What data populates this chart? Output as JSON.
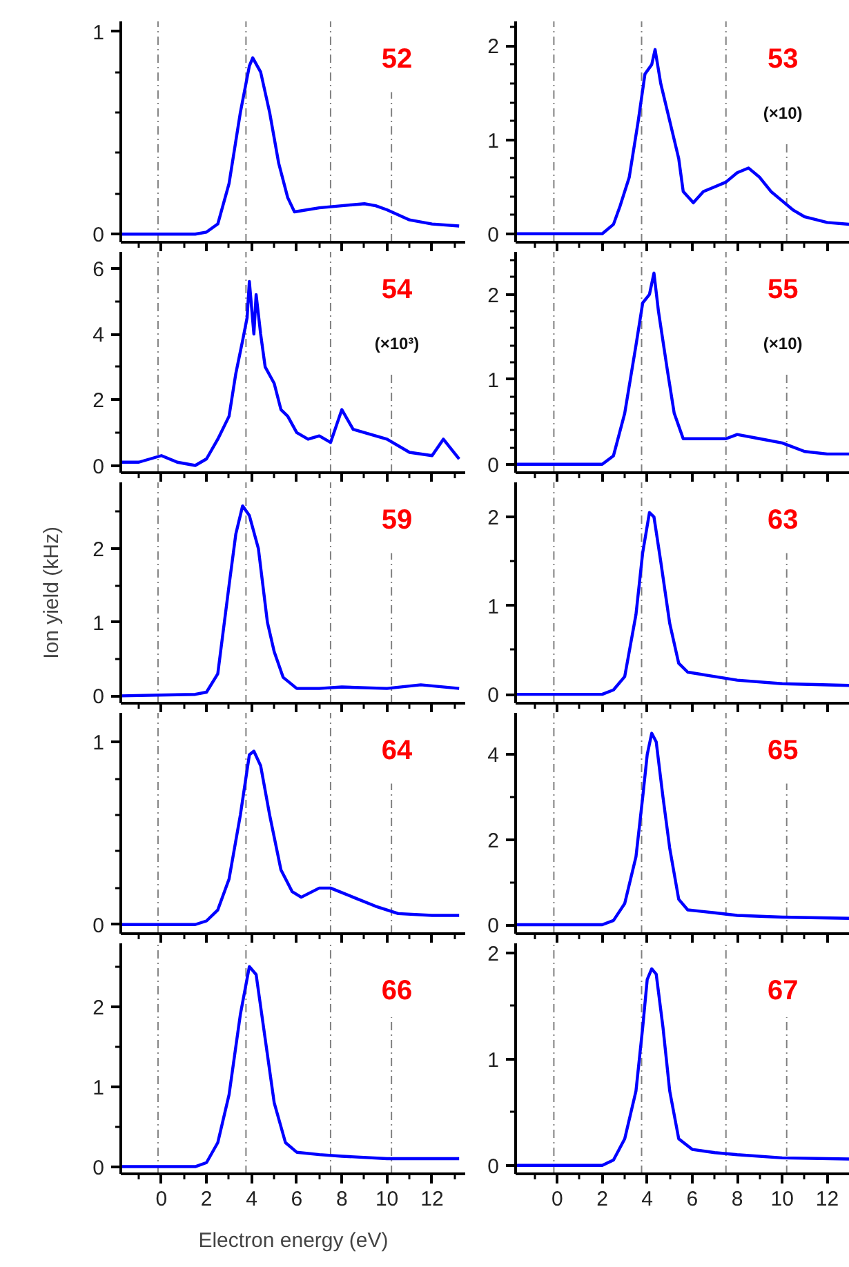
{
  "chart_data": [
    {
      "type": "line",
      "annotations": [
        "52"
      ],
      "tick_labels": "y",
      "xlim": [
        -1.8,
        13.5
      ],
      "ylim": [
        -0.04,
        1.05
      ],
      "xticks": [
        {
          "value": -1,
          "label": null
        },
        0,
        {
          "value": 1,
          "label": null
        },
        2,
        {
          "value": 3,
          "label": null
        },
        4,
        {
          "value": 5,
          "label": null
        },
        6,
        {
          "value": 7,
          "label": null
        },
        8,
        {
          "value": 9,
          "label": null
        },
        10,
        {
          "value": 11,
          "label": null
        },
        12,
        {
          "value": 13,
          "label": null
        }
      ],
      "yticks": [
        0,
        {
          "value": 0.2,
          "label": null
        },
        {
          "value": 0.4,
          "label": null
        },
        {
          "value": 0.6,
          "label": null
        },
        {
          "value": 0.8,
          "label": null
        },
        1
      ],
      "ref_lines": [
        {
          "axis": "x",
          "value": -0.15,
          "color": "#808080",
          "line_style": "dashed"
        },
        {
          "axis": "x",
          "value": 3.75,
          "color": "#808080",
          "line_style": "dashed"
        },
        {
          "axis": "x",
          "value": 7.5,
          "color": "#808080",
          "line_style": "dashed"
        },
        {
          "axis": "x",
          "value": 10.2,
          "color": "#808080",
          "line_style": "dashed"
        }
      ],
      "x": [
        -1.8,
        1.5,
        2.0,
        2.5,
        3.0,
        3.5,
        3.9,
        4.05,
        4.4,
        4.8,
        5.2,
        5.6,
        5.9,
        7,
        8,
        9,
        9.5,
        10,
        11,
        12,
        13.2
      ],
      "series": [
        {
          "color": "#0000ff",
          "values": [
            0,
            0,
            0.01,
            0.05,
            0.25,
            0.6,
            0.83,
            0.87,
            0.8,
            0.6,
            0.35,
            0.18,
            0.11,
            0.13,
            0.14,
            0.15,
            0.14,
            0.12,
            0.07,
            0.05,
            0.04
          ]
        }
      ]
    },
    {
      "type": "line",
      "annotations": [
        "53",
        "(×10)"
      ],
      "tick_labels": "y",
      "xlim": [
        -1.85,
        13.0
      ],
      "ylim": [
        -0.09,
        2.26
      ],
      "xticks": [
        {
          "value": -1,
          "label": null
        },
        0,
        {
          "value": 1,
          "label": null
        },
        2,
        {
          "value": 3,
          "label": null
        },
        4,
        {
          "value": 5,
          "label": null
        },
        6,
        {
          "value": 7,
          "label": null
        },
        8,
        {
          "value": 9,
          "label": null
        },
        10,
        {
          "value": 11,
          "label": null
        },
        12
      ],
      "yticks": [
        0,
        {
          "value": 0.2,
          "label": null
        },
        {
          "value": 0.4,
          "label": null
        },
        {
          "value": 0.6,
          "label": null
        },
        {
          "value": 0.8,
          "label": null
        },
        1,
        {
          "value": 1.2,
          "label": null
        },
        {
          "value": 1.4,
          "label": null
        },
        {
          "value": 1.6,
          "label": null
        },
        {
          "value": 1.8,
          "label": null
        },
        2,
        {
          "value": 2.2,
          "label": null
        }
      ],
      "ref_lines": [
        {
          "axis": "x",
          "value": -0.15,
          "color": "#808080",
          "line_style": "dashed"
        },
        {
          "axis": "x",
          "value": 3.75,
          "color": "#808080",
          "line_style": "dashed"
        },
        {
          "axis": "x",
          "value": 7.5,
          "color": "#808080",
          "line_style": "dashed"
        },
        {
          "axis": "x",
          "value": 10.2,
          "color": "#808080",
          "line_style": "dashed"
        }
      ],
      "x": [
        -1.85,
        2.0,
        2.5,
        2.8,
        3.2,
        3.6,
        3.9,
        4.2,
        4.35,
        4.6,
        5.0,
        5.4,
        5.6,
        6.05,
        6.5,
        7.0,
        7.5,
        8,
        8.5,
        9,
        9.5,
        10,
        10.5,
        11,
        12,
        13
      ],
      "series": [
        {
          "color": "#0000ff",
          "values": [
            0,
            0,
            0.1,
            0.3,
            0.6,
            1.2,
            1.7,
            1.8,
            1.96,
            1.6,
            1.2,
            0.8,
            0.45,
            0.33,
            0.45,
            0.5,
            0.55,
            0.65,
            0.7,
            0.6,
            0.45,
            0.35,
            0.25,
            0.18,
            0.12,
            0.1
          ]
        }
      ]
    },
    {
      "type": "line",
      "annotations": [
        "54",
        "(×10³)"
      ],
      "tick_labels": "y",
      "xlim": [
        -1.8,
        13.5
      ],
      "ylim": [
        -0.22,
        6.5
      ],
      "xticks": [
        {
          "value": -1,
          "label": null
        },
        0,
        {
          "value": 1,
          "label": null
        },
        2,
        {
          "value": 3,
          "label": null
        },
        4,
        {
          "value": 5,
          "label": null
        },
        6,
        {
          "value": 7,
          "label": null
        },
        8,
        {
          "value": 9,
          "label": null
        },
        10,
        {
          "value": 11,
          "label": null
        },
        12,
        {
          "value": 13,
          "label": null
        }
      ],
      "yticks": [
        0,
        {
          "value": 1,
          "label": null
        },
        2,
        {
          "value": 3,
          "label": null
        },
        4,
        {
          "value": 5,
          "label": null
        },
        6
      ],
      "ref_lines": [
        {
          "axis": "x",
          "value": -0.15,
          "color": "#808080",
          "line_style": "dashed"
        },
        {
          "axis": "x",
          "value": 3.75,
          "color": "#808080",
          "line_style": "dashed"
        },
        {
          "axis": "x",
          "value": 7.5,
          "color": "#808080",
          "line_style": "dashed"
        },
        {
          "axis": "x",
          "value": 10.2,
          "color": "#808080",
          "line_style": "dashed"
        }
      ],
      "x": [
        -1.8,
        -1,
        0,
        0.7,
        1.5,
        2.0,
        2.5,
        3.0,
        3.3,
        3.6,
        3.8,
        3.9,
        4.1,
        4.2,
        4.4,
        4.6,
        5.0,
        5.3,
        5.6,
        6,
        6.5,
        7,
        7.5,
        8,
        8.5,
        9,
        10,
        11,
        12,
        12.5,
        13.2
      ],
      "series": [
        {
          "color": "#0000ff",
          "values": [
            0.1,
            0.1,
            0.3,
            0.1,
            0,
            0.2,
            0.8,
            1.5,
            2.8,
            3.8,
            4.5,
            5.6,
            4.0,
            5.2,
            4.0,
            3.0,
            2.5,
            1.7,
            1.5,
            1.0,
            0.8,
            0.9,
            0.7,
            1.7,
            1.1,
            1.0,
            0.8,
            0.4,
            0.3,
            0.8,
            0.2
          ]
        }
      ]
    },
    {
      "type": "line",
      "annotations": [
        "55",
        "(×10)"
      ],
      "tick_labels": "y",
      "xlim": [
        -1.85,
        13.0
      ],
      "ylim": [
        -0.1,
        2.5
      ],
      "xticks": [
        {
          "value": -1,
          "label": null
        },
        0,
        {
          "value": 1,
          "label": null
        },
        2,
        {
          "value": 3,
          "label": null
        },
        4,
        {
          "value": 5,
          "label": null
        },
        6,
        {
          "value": 7,
          "label": null
        },
        8,
        {
          "value": 9,
          "label": null
        },
        10,
        {
          "value": 11,
          "label": null
        },
        12
      ],
      "yticks": [
        0,
        {
          "value": 0.2,
          "label": null
        },
        {
          "value": 0.4,
          "label": null
        },
        {
          "value": 0.6,
          "label": null
        },
        {
          "value": 0.8,
          "label": null
        },
        1,
        {
          "value": 1.2,
          "label": null
        },
        {
          "value": 1.4,
          "label": null
        },
        {
          "value": 1.6,
          "label": null
        },
        {
          "value": 1.8,
          "label": null
        },
        2,
        {
          "value": 2.2,
          "label": null
        },
        {
          "value": 2.4,
          "label": null
        }
      ],
      "ref_lines": [
        {
          "axis": "x",
          "value": -0.15,
          "color": "#808080",
          "line_style": "dashed"
        },
        {
          "axis": "x",
          "value": 3.75,
          "color": "#808080",
          "line_style": "dashed"
        },
        {
          "axis": "x",
          "value": 7.5,
          "color": "#808080",
          "line_style": "dashed"
        },
        {
          "axis": "x",
          "value": 10.2,
          "color": "#808080",
          "line_style": "dashed"
        }
      ],
      "x": [
        -1.85,
        2.0,
        2.5,
        3.0,
        3.5,
        3.8,
        4.1,
        4.3,
        4.5,
        4.9,
        5.2,
        5.6,
        6.5,
        7.5,
        8,
        9,
        10,
        11,
        12,
        13
      ],
      "series": [
        {
          "color": "#0000ff",
          "values": [
            0,
            0,
            0.1,
            0.6,
            1.4,
            1.9,
            2.0,
            2.25,
            1.8,
            1.1,
            0.6,
            0.3,
            0.3,
            0.3,
            0.35,
            0.3,
            0.25,
            0.15,
            0.12,
            0.12
          ]
        }
      ]
    },
    {
      "type": "line",
      "annotations": [
        "59"
      ],
      "ylabel": "Ion yield (kHz)",
      "tick_labels": "y",
      "xlim": [
        -1.8,
        13.5
      ],
      "ylim": [
        -0.1,
        2.9
      ],
      "xticks": [
        {
          "value": -1,
          "label": null
        },
        0,
        {
          "value": 1,
          "label": null
        },
        2,
        {
          "value": 3,
          "label": null
        },
        4,
        {
          "value": 5,
          "label": null
        },
        6,
        {
          "value": 7,
          "label": null
        },
        8,
        {
          "value": 9,
          "label": null
        },
        10,
        {
          "value": 11,
          "label": null
        },
        12,
        {
          "value": 13,
          "label": null
        }
      ],
      "yticks": [
        0,
        {
          "value": 0.5,
          "label": null
        },
        1,
        {
          "value": 1.5,
          "label": null
        },
        2,
        {
          "value": 2.5,
          "label": null
        }
      ],
      "ref_lines": [
        {
          "axis": "x",
          "value": -0.15,
          "color": "#808080",
          "line_style": "dashed"
        },
        {
          "axis": "x",
          "value": 3.75,
          "color": "#808080",
          "line_style": "dashed"
        },
        {
          "axis": "x",
          "value": 7.5,
          "color": "#808080",
          "line_style": "dashed"
        },
        {
          "axis": "x",
          "value": 10.2,
          "color": "#808080",
          "line_style": "dashed"
        }
      ],
      "x": [
        -1.8,
        1.5,
        2.0,
        2.5,
        3.0,
        3.3,
        3.6,
        3.9,
        4.3,
        4.7,
        5.0,
        5.4,
        6,
        7,
        8,
        10,
        11.5,
        13.2
      ],
      "series": [
        {
          "color": "#0000ff",
          "values": [
            0,
            0.02,
            0.05,
            0.3,
            1.5,
            2.2,
            2.58,
            2.45,
            2.0,
            1.0,
            0.6,
            0.25,
            0.1,
            0.1,
            0.12,
            0.1,
            0.15,
            0.1
          ]
        }
      ]
    },
    {
      "type": "line",
      "annotations": [
        "63"
      ],
      "tick_labels": "y",
      "xlim": [
        -1.85,
        13.0
      ],
      "ylim": [
        -0.1,
        2.39
      ],
      "xticks": [
        {
          "value": -1,
          "label": null
        },
        0,
        {
          "value": 1,
          "label": null
        },
        2,
        {
          "value": 3,
          "label": null
        },
        4,
        {
          "value": 5,
          "label": null
        },
        6,
        {
          "value": 7,
          "label": null
        },
        8,
        {
          "value": 9,
          "label": null
        },
        10,
        {
          "value": 11,
          "label": null
        },
        12
      ],
      "yticks": [
        0,
        {
          "value": 0.5,
          "label": null
        },
        1,
        {
          "value": 1.5,
          "label": null
        },
        2
      ],
      "ref_lines": [
        {
          "axis": "x",
          "value": -0.15,
          "color": "#808080",
          "line_style": "dashed"
        },
        {
          "axis": "x",
          "value": 3.75,
          "color": "#808080",
          "line_style": "dashed"
        },
        {
          "axis": "x",
          "value": 7.5,
          "color": "#808080",
          "line_style": "dashed"
        },
        {
          "axis": "x",
          "value": 10.2,
          "color": "#808080",
          "line_style": "dashed"
        }
      ],
      "x": [
        -1.85,
        2.0,
        2.5,
        3.0,
        3.5,
        3.8,
        4.1,
        4.3,
        4.6,
        5.0,
        5.4,
        5.8,
        7,
        8,
        10,
        13
      ],
      "series": [
        {
          "color": "#0000ff",
          "values": [
            0,
            0,
            0.05,
            0.2,
            0.9,
            1.6,
            2.05,
            2.0,
            1.5,
            0.8,
            0.35,
            0.25,
            0.2,
            0.16,
            0.12,
            0.1
          ]
        }
      ]
    },
    {
      "type": "line",
      "annotations": [
        "64"
      ],
      "tick_labels": "y",
      "xlim": [
        -1.8,
        13.5
      ],
      "ylim": [
        -0.05,
        1.16
      ],
      "xticks": [
        {
          "value": -1,
          "label": null
        },
        0,
        {
          "value": 1,
          "label": null
        },
        2,
        {
          "value": 3,
          "label": null
        },
        4,
        {
          "value": 5,
          "label": null
        },
        6,
        {
          "value": 7,
          "label": null
        },
        8,
        {
          "value": 9,
          "label": null
        },
        10,
        {
          "value": 11,
          "label": null
        },
        12,
        {
          "value": 13,
          "label": null
        }
      ],
      "yticks": [
        0,
        {
          "value": 0.2,
          "label": null
        },
        {
          "value": 0.4,
          "label": null
        },
        {
          "value": 0.6,
          "label": null
        },
        {
          "value": 0.8,
          "label": null
        },
        1
      ],
      "ref_lines": [
        {
          "axis": "x",
          "value": -0.15,
          "color": "#808080",
          "line_style": "dashed"
        },
        {
          "axis": "x",
          "value": 3.75,
          "color": "#808080",
          "line_style": "dashed"
        },
        {
          "axis": "x",
          "value": 7.5,
          "color": "#808080",
          "line_style": "dashed"
        },
        {
          "axis": "x",
          "value": 10.2,
          "color": "#808080",
          "line_style": "dashed"
        }
      ],
      "x": [
        -1.8,
        1.5,
        2.0,
        2.5,
        3.0,
        3.5,
        3.9,
        4.1,
        4.4,
        4.8,
        5.3,
        5.8,
        6.2,
        7,
        7.5,
        8.5,
        9.5,
        10.5,
        12,
        13.2
      ],
      "series": [
        {
          "color": "#0000ff",
          "values": [
            0,
            0,
            0.02,
            0.08,
            0.25,
            0.6,
            0.93,
            0.95,
            0.87,
            0.6,
            0.3,
            0.18,
            0.15,
            0.2,
            0.2,
            0.15,
            0.1,
            0.06,
            0.05,
            0.05
          ]
        }
      ]
    },
    {
      "type": "line",
      "annotations": [
        "65"
      ],
      "tick_labels": "y",
      "xlim": [
        -1.85,
        13.0
      ],
      "ylim": [
        -0.21,
        4.98
      ],
      "xticks": [
        {
          "value": -1,
          "label": null
        },
        0,
        {
          "value": 1,
          "label": null
        },
        2,
        {
          "value": 3,
          "label": null
        },
        4,
        {
          "value": 5,
          "label": null
        },
        6,
        {
          "value": 7,
          "label": null
        },
        8,
        {
          "value": 9,
          "label": null
        },
        10,
        {
          "value": 11,
          "label": null
        },
        12
      ],
      "yticks": [
        0,
        {
          "value": 1,
          "label": null
        },
        2,
        {
          "value": 3,
          "label": null
        },
        4
      ],
      "ref_lines": [
        {
          "axis": "x",
          "value": -0.15,
          "color": "#808080",
          "line_style": "dashed"
        },
        {
          "axis": "x",
          "value": 3.75,
          "color": "#808080",
          "line_style": "dashed"
        },
        {
          "axis": "x",
          "value": 7.5,
          "color": "#808080",
          "line_style": "dashed"
        },
        {
          "axis": "x",
          "value": 10.2,
          "color": "#808080",
          "line_style": "dashed"
        }
      ],
      "x": [
        -1.85,
        2.0,
        2.5,
        3.0,
        3.5,
        3.8,
        4.0,
        4.2,
        4.4,
        4.7,
        5.0,
        5.4,
        5.8,
        7,
        8,
        10,
        13
      ],
      "series": [
        {
          "color": "#0000ff",
          "values": [
            0,
            0,
            0.1,
            0.5,
            1.6,
            3.0,
            4.0,
            4.5,
            4.3,
            3.0,
            1.8,
            0.6,
            0.35,
            0.28,
            0.22,
            0.18,
            0.15
          ]
        }
      ]
    },
    {
      "type": "line",
      "annotations": [
        "66"
      ],
      "xlabel": "Electron energy (eV)",
      "xlim": [
        -1.8,
        13.5
      ],
      "ylim": [
        -0.09,
        2.79
      ],
      "xticks": [
        {
          "value": -1,
          "label": null
        },
        0,
        {
          "value": 1,
          "label": null
        },
        2,
        {
          "value": 3,
          "label": null
        },
        4,
        {
          "value": 5,
          "label": null
        },
        6,
        {
          "value": 7,
          "label": null
        },
        8,
        {
          "value": 9,
          "label": null
        },
        10,
        {
          "value": 11,
          "label": null
        },
        12,
        {
          "value": 13,
          "label": null
        }
      ],
      "yticks": [
        0,
        {
          "value": 0.5,
          "label": null
        },
        1,
        {
          "value": 1.5,
          "label": null
        },
        2,
        {
          "value": 2.5,
          "label": null
        }
      ],
      "ref_lines": [
        {
          "axis": "x",
          "value": -0.15,
          "color": "#808080",
          "line_style": "dashed"
        },
        {
          "axis": "x",
          "value": 3.75,
          "color": "#808080",
          "line_style": "dashed"
        },
        {
          "axis": "x",
          "value": 7.5,
          "color": "#808080",
          "line_style": "dashed"
        },
        {
          "axis": "x",
          "value": 10.2,
          "color": "#808080",
          "line_style": "dashed"
        }
      ],
      "x": [
        -1.8,
        1.5,
        2.0,
        2.5,
        3.0,
        3.5,
        3.9,
        4.2,
        4.6,
        5.0,
        5.5,
        6,
        7,
        8,
        10,
        13.2
      ],
      "series": [
        {
          "color": "#0000ff",
          "values": [
            0,
            0,
            0.05,
            0.3,
            0.9,
            1.9,
            2.5,
            2.4,
            1.6,
            0.8,
            0.3,
            0.18,
            0.15,
            0.13,
            0.1,
            0.1
          ]
        }
      ]
    },
    {
      "type": "line",
      "annotations": [
        "67"
      ],
      "xlim": [
        -1.85,
        13.0
      ],
      "ylim": [
        -0.08,
        2.09
      ],
      "xticks": [
        {
          "value": -1,
          "label": null
        },
        0,
        {
          "value": 1,
          "label": null
        },
        2,
        {
          "value": 3,
          "label": null
        },
        4,
        {
          "value": 5,
          "label": null
        },
        6,
        {
          "value": 7,
          "label": null
        },
        8,
        {
          "value": 9,
          "label": null
        },
        10,
        {
          "value": 11,
          "label": null
        },
        12
      ],
      "yticks": [
        0,
        {
          "value": 0.5,
          "label": null
        },
        1,
        {
          "value": 1.5,
          "label": null
        },
        2
      ],
      "ref_lines": [
        {
          "axis": "x",
          "value": -0.15,
          "color": "#808080",
          "line_style": "dashed"
        },
        {
          "axis": "x",
          "value": 3.75,
          "color": "#808080",
          "line_style": "dashed"
        },
        {
          "axis": "x",
          "value": 7.5,
          "color": "#808080",
          "line_style": "dashed"
        },
        {
          "axis": "x",
          "value": 10.2,
          "color": "#808080",
          "line_style": "dashed"
        }
      ],
      "x": [
        -1.85,
        2.0,
        2.5,
        3.0,
        3.5,
        3.8,
        4.0,
        4.2,
        4.4,
        4.7,
        5.0,
        5.4,
        6,
        7,
        8,
        10,
        13
      ],
      "series": [
        {
          "color": "#0000ff",
          "values": [
            0,
            0,
            0.05,
            0.25,
            0.7,
            1.3,
            1.75,
            1.85,
            1.8,
            1.3,
            0.7,
            0.25,
            0.15,
            0.12,
            0.1,
            0.07,
            0.06
          ]
        }
      ]
    }
  ]
}
